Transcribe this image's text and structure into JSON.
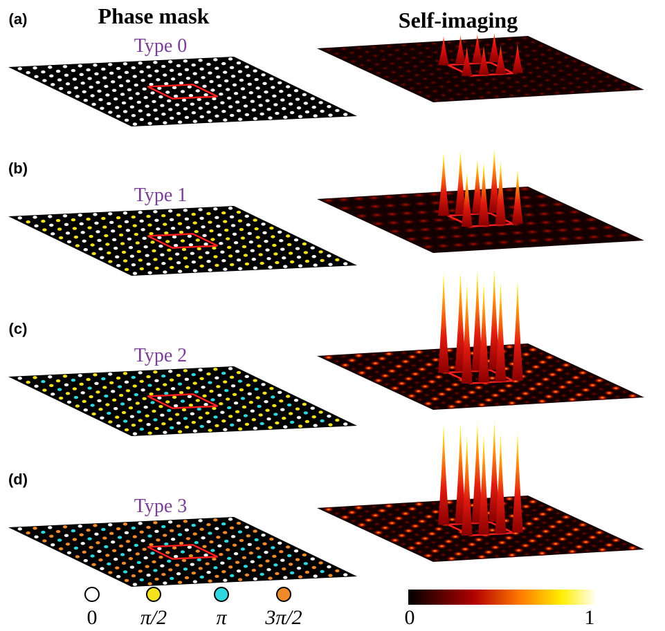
{
  "columns": {
    "left": "Phase mask",
    "right": "Self-imaging"
  },
  "panels": [
    {
      "label": "(a)",
      "type_label": "Type 0"
    },
    {
      "label": "(b)",
      "type_label": "Type 1"
    },
    {
      "label": "(c)",
      "type_label": "Type 2"
    },
    {
      "label": "(d)",
      "type_label": "Type 3"
    }
  ],
  "legend": [
    {
      "label": "0",
      "color": "#ffffff"
    },
    {
      "label": "π/2",
      "color": "#f5e21c"
    },
    {
      "label": "π",
      "color": "#2fd8e0"
    },
    {
      "label": "3π/2",
      "color": "#f08a2a"
    }
  ],
  "colorbar": {
    "min_label": "0",
    "max_label": "1"
  }
}
